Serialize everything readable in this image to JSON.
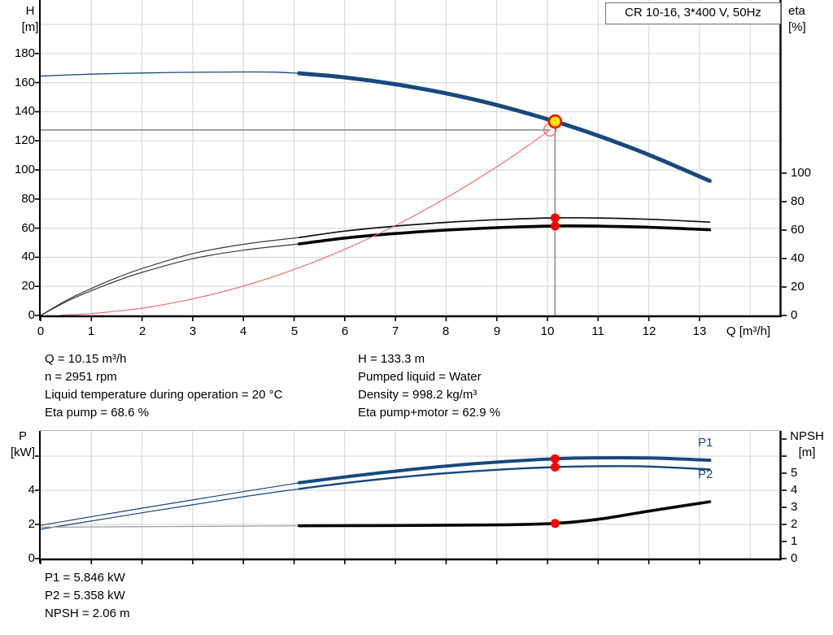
{
  "colors": {
    "blue": "#17497d",
    "red": "#ff0000",
    "red_light": "#f36d6d",
    "yellow": "#ffe400",
    "crosshair_gray": "#8f8f8f",
    "grid": "#d9d9d9",
    "black": "#000000",
    "npsh_thin_gray": "#9a9a9a",
    "axis": "#000000"
  },
  "operating_point": {
    "left": [
      "Q = 10.15 m³/h",
      "n = 2951 rpm",
      "Liquid temperature during operation = 20 °C",
      "Eta pump = 68.6 %"
    ],
    "right": [
      "H = 133.3 m",
      "Pumped liquid = Water",
      "Density = 998.2 kg/m³",
      "Eta pump+motor = 62.9 %"
    ]
  },
  "results": [
    "P1 = 5.846 kW",
    "P2 = 5.358 kW",
    "NPSH = 2.06 m"
  ],
  "chart_data": [
    {
      "type": "line",
      "title": "CR 10-16, 3*400 V, 50Hz",
      "x": {
        "label": "Q [m³/h]",
        "min": 0,
        "max": 14.6,
        "ticks": [
          0,
          1,
          2,
          3,
          4,
          5,
          6,
          7,
          8,
          9,
          10,
          11,
          12,
          13
        ],
        "grid": [
          1,
          2,
          3,
          4,
          5,
          6,
          7,
          8,
          9,
          10,
          11,
          12,
          13,
          14
        ]
      },
      "yl": {
        "title": [
          "H",
          "[m]"
        ],
        "min": 0,
        "max": 212,
        "ticks": [
          0,
          20,
          40,
          60,
          80,
          100,
          120,
          140,
          160,
          180
        ],
        "grid": [
          20,
          40,
          60,
          80,
          100,
          120,
          140,
          160,
          180,
          200
        ]
      },
      "yr": {
        "title": [
          "eta",
          "[%]"
        ],
        "min": 0,
        "max": 121,
        "ticks": [
          0,
          20,
          40,
          60,
          80,
          100
        ]
      },
      "series": [
        {
          "name": "head-curve-rated-thin",
          "axis": "left",
          "color": "#17497d",
          "width": 1.3,
          "points": [
            [
              0,
              164.5
            ],
            [
              1,
              165.8
            ],
            [
              2,
              166.6
            ],
            [
              3,
              167.1
            ],
            [
              4,
              167.3
            ],
            [
              4.6,
              167.2
            ],
            [
              5.1,
              166.4
            ]
          ]
        },
        {
          "name": "head-curve-duty-thick",
          "axis": "left",
          "color": "#17497d",
          "width": 5,
          "points": [
            [
              5.1,
              166.4
            ],
            [
              6,
              163.6
            ],
            [
              7,
              158.9
            ],
            [
              8,
              152.6
            ],
            [
              9,
              144.6
            ],
            [
              10.15,
              133.3
            ],
            [
              11,
              123.5
            ],
            [
              12,
              110.4
            ],
            [
              13.2,
              92.5
            ]
          ]
        },
        {
          "name": "eta-pump-curve-thin",
          "axis": "right",
          "color": "#3a3a3a",
          "width": 1.2,
          "points": [
            [
              0,
              0
            ],
            [
              0.5,
              10.5
            ],
            [
              1,
              19
            ],
            [
              1.5,
              26.5
            ],
            [
              2,
              33
            ],
            [
              3,
              43.5
            ],
            [
              4,
              50
            ],
            [
              5.1,
              54.8
            ]
          ]
        },
        {
          "name": "eta-pump-curve",
          "axis": "right",
          "color": "#111111",
          "width": 1.7,
          "points": [
            [
              5.1,
              54.8
            ],
            [
              6,
              59.3
            ],
            [
              7,
              62.8
            ],
            [
              8,
              65.4
            ],
            [
              9,
              67.3
            ],
            [
              10.15,
              68.6
            ],
            [
              11,
              68.5
            ],
            [
              12,
              67.6
            ],
            [
              13.2,
              65.6
            ]
          ]
        },
        {
          "name": "eta-pump-motor-curve-thin",
          "axis": "right",
          "color": "#3a3a3a",
          "width": 1.2,
          "points": [
            [
              0,
              0
            ],
            [
              0.5,
              9.6
            ],
            [
              1,
              17.4
            ],
            [
              1.5,
              24.3
            ],
            [
              2,
              30.3
            ],
            [
              3,
              39.9
            ],
            [
              4,
              45.9
            ],
            [
              5.1,
              50.3
            ]
          ]
        },
        {
          "name": "eta-pump-motor-curve",
          "axis": "right",
          "color": "#000000",
          "width": 3.6,
          "points": [
            [
              5.1,
              50.3
            ],
            [
              6,
              54.4
            ],
            [
              7,
              57.6
            ],
            [
              8,
              60
            ],
            [
              9,
              61.7
            ],
            [
              10.15,
              62.9
            ],
            [
              11,
              62.8
            ],
            [
              12,
              62
            ],
            [
              13.2,
              60.2
            ]
          ]
        },
        {
          "name": "system-curve",
          "axis": "left",
          "color": "#f36d6d",
          "width": 1.2,
          "points": [
            [
              0.4,
              0.2
            ],
            [
              1,
              1.3
            ],
            [
              2,
              5
            ],
            [
              3,
              11.4
            ],
            [
              4,
              20.2
            ],
            [
              5,
              31.6
            ],
            [
              6,
              45.4
            ],
            [
              7,
              61.8
            ],
            [
              8,
              80.8
            ],
            [
              9,
              102.2
            ],
            [
              9.6,
              116.3
            ],
            [
              10.05,
              127.5
            ]
          ]
        }
      ],
      "markers": [
        {
          "kind": "hline",
          "axis": "left",
          "value": 127.5,
          "q1": 0,
          "q2": 10.05
        },
        {
          "kind": "vline",
          "axis": "left",
          "q": 10.15,
          "v1": 133.3,
          "v2": 0
        },
        {
          "kind": "open",
          "axis": "left",
          "q": 10.05,
          "value": 127.5
        },
        {
          "kind": "duty",
          "axis": "left",
          "q": 10.15,
          "value": 133.3
        },
        {
          "kind": "dot",
          "axis": "right",
          "q": 10.15,
          "value": 68.6
        },
        {
          "kind": "dot",
          "axis": "right",
          "q": 10.15,
          "value": 62.9
        }
      ]
    },
    {
      "type": "line",
      "x": {
        "min": 0,
        "max": 14.6,
        "ticks": [
          0,
          1,
          2,
          3,
          4,
          5,
          6,
          7,
          8,
          9,
          10,
          11,
          12,
          13
        ],
        "grid": [
          1,
          2,
          3,
          4,
          5,
          6,
          7,
          8,
          9,
          10,
          11,
          12,
          13,
          14
        ]
      },
      "yl": {
        "title": [
          "P",
          "[kW]"
        ],
        "min": 0,
        "max": 7.5,
        "ticks": [
          0,
          2,
          4
        ],
        "extra_ticks": [
          6
        ],
        "grid": [
          2,
          4,
          6
        ]
      },
      "yr": {
        "title": [
          "NPSH",
          "[m]"
        ],
        "min": 0,
        "max": 7.5,
        "ticks": [
          0,
          1,
          2,
          3,
          4,
          5
        ],
        "extra_ticks": [
          6,
          7
        ]
      },
      "series": [
        {
          "name": "p1-curve-thin",
          "axis": "left",
          "color": "#17497d",
          "width": 1.2,
          "points": [
            [
              0,
              1.95
            ],
            [
              2,
              2.95
            ],
            [
              4,
              3.92
            ],
            [
              5.1,
              4.44
            ]
          ]
        },
        {
          "name": "p1-curve",
          "label": "P1",
          "axis": "left",
          "color": "#17497d",
          "width": 4,
          "points": [
            [
              5.1,
              4.44
            ],
            [
              6,
              4.78
            ],
            [
              7,
              5.12
            ],
            [
              8,
              5.42
            ],
            [
              9,
              5.65
            ],
            [
              10.15,
              5.846
            ],
            [
              11,
              5.9
            ],
            [
              12,
              5.89
            ],
            [
              13.2,
              5.76
            ]
          ]
        },
        {
          "name": "p2-curve-thin",
          "axis": "left",
          "color": "#17497d",
          "width": 1.2,
          "points": [
            [
              0,
              1.72
            ],
            [
              2,
              2.68
            ],
            [
              4,
              3.62
            ],
            [
              5.1,
              4.08
            ]
          ]
        },
        {
          "name": "p2-curve",
          "label": "P2",
          "axis": "left",
          "color": "#17497d",
          "width": 2.4,
          "points": [
            [
              5.1,
              4.08
            ],
            [
              6,
              4.42
            ],
            [
              7,
              4.74
            ],
            [
              8,
              5.0
            ],
            [
              9,
              5.2
            ],
            [
              10.15,
              5.358
            ],
            [
              11,
              5.41
            ],
            [
              12,
              5.39
            ],
            [
              13.2,
              5.22
            ]
          ]
        },
        {
          "name": "npsh-curve-thin",
          "axis": "right",
          "color": "#9a9a9a",
          "width": 1.2,
          "points": [
            [
              0,
              1.84
            ],
            [
              3,
              1.88
            ],
            [
              5.1,
              1.92
            ]
          ]
        },
        {
          "name": "npsh-curve",
          "axis": "right",
          "color": "#000000",
          "width": 3.6,
          "points": [
            [
              5.1,
              1.92
            ],
            [
              7,
              1.94
            ],
            [
              9,
              1.97
            ],
            [
              10.15,
              2.06
            ],
            [
              11,
              2.3
            ],
            [
              12,
              2.78
            ],
            [
              13.2,
              3.33
            ]
          ]
        }
      ],
      "markers": [
        {
          "kind": "dot",
          "axis": "left",
          "q": 10.15,
          "value": 5.846
        },
        {
          "kind": "dot",
          "axis": "left",
          "q": 10.15,
          "value": 5.358
        },
        {
          "kind": "dot",
          "axis": "right",
          "q": 10.15,
          "value": 2.06
        }
      ]
    }
  ]
}
